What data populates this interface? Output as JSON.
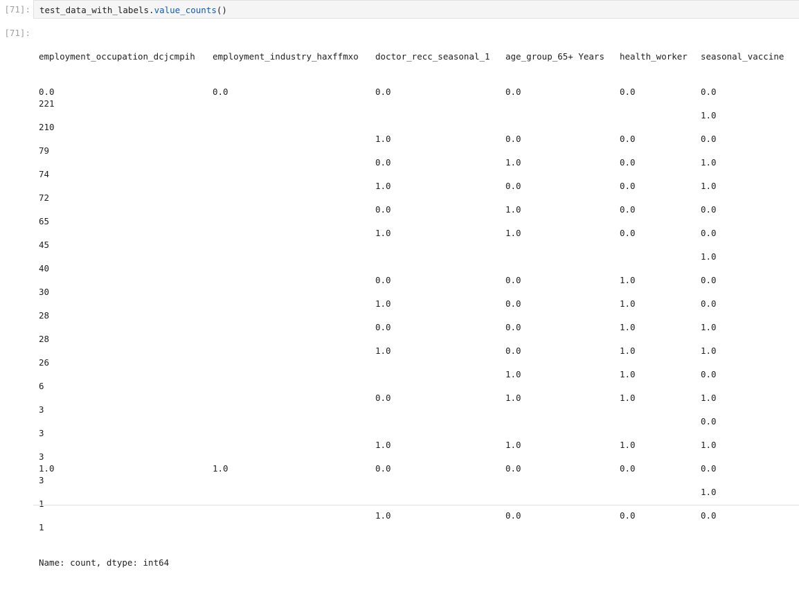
{
  "cell": {
    "in_prompt": "[71]:",
    "out_prompt": "[71]:",
    "code": {
      "object": "test_data_with_labels",
      "dot": ".",
      "method": "value_counts",
      "call": "()"
    }
  },
  "output": {
    "headers": [
      "employment_occupation_dcjcmpih",
      "employment_industry_haxffmxo",
      "doctor_recc_seasonal_1",
      "age_group_65+ Years",
      "health_worker",
      "seasonal_vaccine"
    ],
    "lines": [
      [
        "0.0",
        "0.0",
        "0.0",
        "0.0",
        "0.0",
        "0.0"
      ],
      [
        "221",
        "",
        "",
        "",
        "",
        ""
      ],
      [
        "",
        "",
        "",
        "",
        "",
        "1.0"
      ],
      [
        "210",
        "",
        "",
        "",
        "",
        ""
      ],
      [
        "",
        "",
        "1.0",
        "0.0",
        "0.0",
        "0.0"
      ],
      [
        "79",
        "",
        "",
        "",
        "",
        ""
      ],
      [
        "",
        "",
        "0.0",
        "1.0",
        "0.0",
        "1.0"
      ],
      [
        "74",
        "",
        "",
        "",
        "",
        ""
      ],
      [
        "",
        "",
        "1.0",
        "0.0",
        "0.0",
        "1.0"
      ],
      [
        "72",
        "",
        "",
        "",
        "",
        ""
      ],
      [
        "",
        "",
        "0.0",
        "1.0",
        "0.0",
        "0.0"
      ],
      [
        "65",
        "",
        "",
        "",
        "",
        ""
      ],
      [
        "",
        "",
        "1.0",
        "1.0",
        "0.0",
        "0.0"
      ],
      [
        "45",
        "",
        "",
        "",
        "",
        ""
      ],
      [
        "",
        "",
        "",
        "",
        "",
        "1.0"
      ],
      [
        "40",
        "",
        "",
        "",
        "",
        ""
      ],
      [
        "",
        "",
        "0.0",
        "0.0",
        "1.0",
        "0.0"
      ],
      [
        "30",
        "",
        "",
        "",
        "",
        ""
      ],
      [
        "",
        "",
        "1.0",
        "0.0",
        "1.0",
        "0.0"
      ],
      [
        "28",
        "",
        "",
        "",
        "",
        ""
      ],
      [
        "",
        "",
        "0.0",
        "0.0",
        "1.0",
        "1.0"
      ],
      [
        "28",
        "",
        "",
        "",
        "",
        ""
      ],
      [
        "",
        "",
        "1.0",
        "0.0",
        "1.0",
        "1.0"
      ],
      [
        "26",
        "",
        "",
        "",
        "",
        ""
      ],
      [
        "",
        "",
        "",
        "1.0",
        "1.0",
        "0.0"
      ],
      [
        "6",
        "",
        "",
        "",
        "",
        ""
      ],
      [
        "",
        "",
        "0.0",
        "1.0",
        "1.0",
        "1.0"
      ],
      [
        "3",
        "",
        "",
        "",
        "",
        ""
      ],
      [
        "",
        "",
        "",
        "",
        "",
        "0.0"
      ],
      [
        "3",
        "",
        "",
        "",
        "",
        ""
      ],
      [
        "",
        "",
        "1.0",
        "1.0",
        "1.0",
        "1.0"
      ],
      [
        "3",
        "",
        "",
        "",
        "",
        ""
      ],
      [
        "1.0",
        "1.0",
        "0.0",
        "0.0",
        "0.0",
        "0.0"
      ],
      [
        "3",
        "",
        "",
        "",
        "",
        ""
      ],
      [
        "",
        "",
        "",
        "",
        "",
        "1.0"
      ],
      [
        "1",
        "",
        "",
        "",
        "",
        ""
      ],
      [
        "",
        "",
        "1.0",
        "0.0",
        "0.0",
        "0.0"
      ],
      [
        "1",
        "",
        "",
        "",
        "",
        ""
      ]
    ],
    "footer": "Name: count, dtype: int64"
  }
}
